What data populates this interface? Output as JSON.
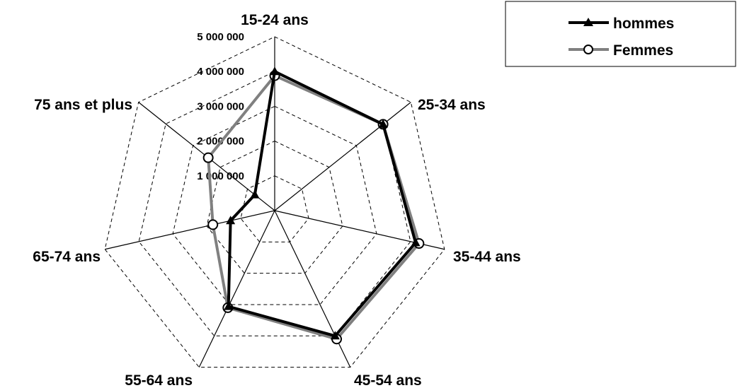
{
  "chart_data": {
    "type": "radar",
    "categories": [
      "15-24 ans",
      "25-34 ans",
      "35-44 ans",
      "45-54 ans",
      "55-64 ans",
      "65-74 ans",
      "75 ans et plus"
    ],
    "tick_labels": [
      "1 000 000",
      "2 000 000",
      "3 000 000",
      "4 000 000",
      "5 000 000"
    ],
    "rmax": 5000000,
    "grid": true,
    "legend_position": "top-right",
    "series": [
      {
        "name": "hommes",
        "color": "#000000",
        "marker": "triangle",
        "values": [
          4000000,
          3980000,
          4150000,
          4000000,
          3060000,
          1300000,
          730000
        ]
      },
      {
        "name": "Femmes",
        "color": "#808080",
        "marker": "circle",
        "values": [
          3880000,
          3980000,
          4250000,
          4100000,
          3100000,
          1820000,
          2440000
        ]
      }
    ]
  }
}
